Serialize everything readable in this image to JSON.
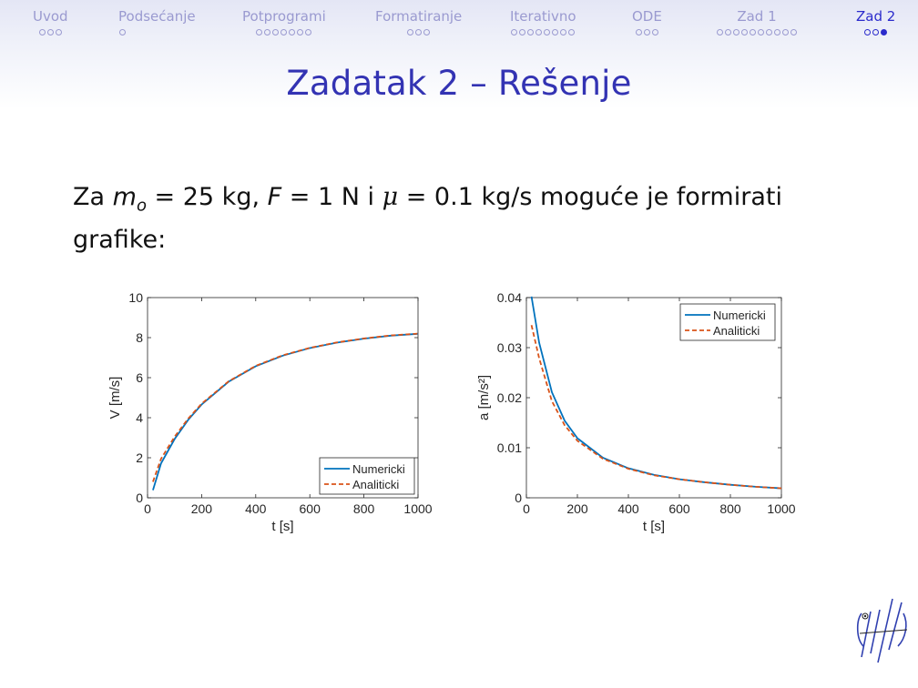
{
  "nav": {
    "sections": [
      {
        "label": "Uvod",
        "dots": 3,
        "current": -1
      },
      {
        "label": "Podsećanje",
        "dots": 1,
        "current": -1
      },
      {
        "label": "Potprogrami",
        "dots": 7,
        "current": -1
      },
      {
        "label": "Formatiranje",
        "dots": 3,
        "current": -1
      },
      {
        "label": "Iterativno",
        "dots": 8,
        "current": -1
      },
      {
        "label": "ODE",
        "dots": 3,
        "current": -1
      },
      {
        "label": "Zad 1",
        "dots": 10,
        "current": -1
      },
      {
        "label": "Zad 2",
        "dots": 3,
        "current": 2,
        "active": true
      }
    ],
    "active_color": "#2b2bcc",
    "inactive_color": "#9a9ad0"
  },
  "slide": {
    "title": "Zadatak 2 – Rešenje",
    "text_prefix": "Za ",
    "m_sym": "m",
    "m_sub": "o",
    "m_value": " = 25 kg, ",
    "f_sym": "F",
    "f_value": " = 1 N i ",
    "mu_sym": "μ",
    "mu_value": " = 0.1 kg/s moguće je formirati grafike:"
  },
  "chart_data": [
    {
      "type": "line",
      "xlabel": "t [s]",
      "ylabel": "V [m/s]",
      "xlim": [
        0,
        1000
      ],
      "ylim": [
        0,
        10
      ],
      "xticks": [
        "0",
        "200",
        "400",
        "600",
        "800",
        "1000"
      ],
      "yticks": [
        "0",
        "2",
        "4",
        "6",
        "8",
        "10"
      ],
      "legend": "bottom-right",
      "grid": false,
      "x": [
        20,
        50,
        100,
        150,
        200,
        300,
        400,
        500,
        600,
        700,
        800,
        900,
        1000
      ],
      "series": [
        {
          "name": "Numericki",
          "color": "#0072bd",
          "dash": "solid",
          "values": [
            0.38,
            1.72,
            2.93,
            3.89,
            4.66,
            5.8,
            6.57,
            7.1,
            7.48,
            7.75,
            7.95,
            8.1,
            8.19
          ]
        },
        {
          "name": "Analiticki",
          "color": "#d95319",
          "dash": "dashed",
          "values": [
            0.8,
            1.95,
            3.05,
            3.95,
            4.7,
            5.82,
            6.59,
            7.12,
            7.49,
            7.76,
            7.96,
            8.11,
            8.2
          ]
        }
      ]
    },
    {
      "type": "line",
      "xlabel": "t [s]",
      "ylabel": "a [m/s²]",
      "xlim": [
        0,
        1000
      ],
      "ylim": [
        0,
        0.04
      ],
      "xticks": [
        "0",
        "200",
        "400",
        "600",
        "800",
        "1000"
      ],
      "yticks": [
        "0",
        "0.01",
        "0.02",
        "0.03",
        "0.04"
      ],
      "legend": "top-right",
      "grid": false,
      "x": [
        20,
        50,
        100,
        150,
        200,
        300,
        400,
        500,
        600,
        700,
        800,
        900,
        1000
      ],
      "series": [
        {
          "name": "Numericki",
          "color": "#0072bd",
          "dash": "solid",
          "values": [
            0.0402,
            0.031,
            0.0211,
            0.0154,
            0.0119,
            0.008,
            0.0059,
            0.0046,
            0.0037,
            0.0031,
            0.0026,
            0.0022,
            0.0019
          ]
        },
        {
          "name": "Analiticki",
          "color": "#d95319",
          "dash": "dashed",
          "values": [
            0.0345,
            0.0279,
            0.0193,
            0.0145,
            0.0114,
            0.0078,
            0.0058,
            0.0045,
            0.0037,
            0.0031,
            0.0026,
            0.0022,
            0.0019
          ]
        }
      ]
    }
  ]
}
